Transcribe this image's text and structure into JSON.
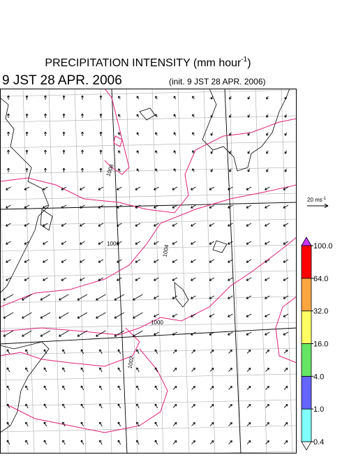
{
  "header": {
    "title": "PRECIPITATION INTENSITY (mm hour",
    "title_superscript": "-1",
    "title_suffix": ")",
    "valid_time": "9 JST 28 APR. 2006",
    "init_time": "(init. 9 JST 28 APR. 2006)"
  },
  "reference_arrow": {
    "label": "20 ms",
    "label_superscript": "-1"
  },
  "map": {
    "contour_labels": [
      "1008",
      "1006",
      "1004",
      "1000",
      "1002"
    ]
  },
  "colorbar": {
    "levels": [
      {
        "value": 0.4,
        "label": "0.4"
      },
      {
        "value": 1.0,
        "label": "1.0"
      },
      {
        "value": 4.0,
        "label": "4.0"
      },
      {
        "value": 16.0,
        "label": "16.0"
      },
      {
        "value": 32.0,
        "label": "32.0"
      },
      {
        "value": 64.0,
        "label": "64.0"
      },
      {
        "value": 100.0,
        "label": "100.0"
      }
    ],
    "colors": [
      "#ffffff",
      "#80ffff",
      "#6464ff",
      "#64e664",
      "#ffff64",
      "#ffa640",
      "#ff0000",
      "#c832ff"
    ]
  }
}
